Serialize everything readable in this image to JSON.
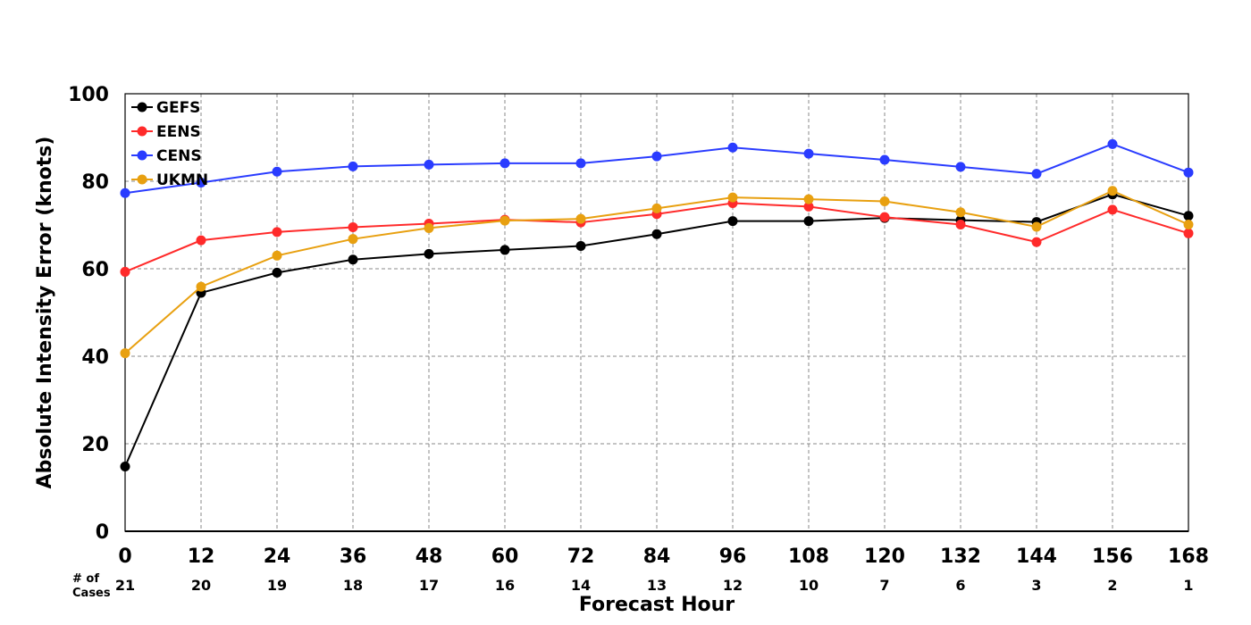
{
  "chart_data": {
    "type": "line",
    "title": "",
    "xlabel": "Forecast Hour",
    "ylabel": "Absolute Intensity Error (knots)",
    "x": [
      0,
      12,
      24,
      36,
      48,
      60,
      72,
      84,
      96,
      108,
      120,
      132,
      144,
      156,
      168
    ],
    "xlim": [
      0,
      168
    ],
    "ylim": [
      0,
      100
    ],
    "yticks": [
      0,
      20,
      40,
      60,
      80,
      100
    ],
    "grid": true,
    "legend_position": "top-left",
    "cases_label": "# of Cases",
    "cases": [
      21,
      20,
      19,
      18,
      17,
      16,
      14,
      13,
      12,
      10,
      7,
      6,
      3,
      2,
      1
    ],
    "series": [
      {
        "name": "GEFS",
        "color": "#000000",
        "values": [
          14.8,
          54.5,
          59.1,
          62.1,
          63.4,
          64.3,
          65.2,
          67.9,
          70.9,
          70.9,
          71.6,
          71.1,
          70.7,
          77.0,
          72.1
        ]
      },
      {
        "name": "EENS",
        "color": "#ff2a2a",
        "values": [
          59.3,
          66.5,
          68.4,
          69.5,
          70.3,
          71.2,
          70.6,
          72.5,
          75.0,
          74.2,
          71.8,
          70.1,
          66.1,
          73.5,
          68.1
        ]
      },
      {
        "name": "CENS",
        "color": "#2a3cff",
        "values": [
          77.3,
          79.7,
          82.2,
          83.4,
          83.8,
          84.1,
          84.1,
          85.7,
          87.7,
          86.3,
          84.9,
          83.3,
          81.7,
          88.5,
          82.0
        ]
      },
      {
        "name": "UKMN",
        "color": "#e8a010",
        "values": [
          40.7,
          55.9,
          63.0,
          66.8,
          69.3,
          71.0,
          71.4,
          73.8,
          76.3,
          75.9,
          75.4,
          72.9,
          69.6,
          77.8,
          70.1
        ]
      }
    ]
  }
}
